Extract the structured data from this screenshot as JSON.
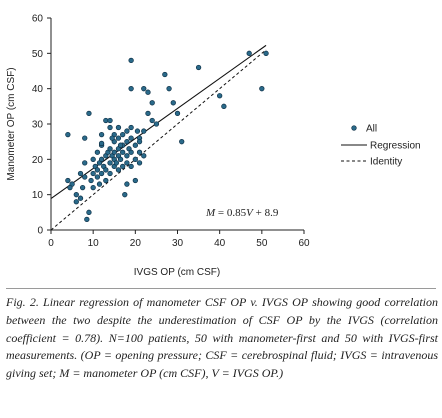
{
  "chart_data": {
    "type": "scatter",
    "xlabel": "IVGS OP (cm CSF)",
    "ylabel": "Manometer OP (cm CSF)",
    "xlim": [
      0,
      60
    ],
    "ylim": [
      0,
      60
    ],
    "x_ticks": [
      "0",
      "10",
      "20",
      "30",
      "40",
      "50",
      "60"
    ],
    "y_ticks": [
      "0",
      "10",
      "20",
      "30",
      "40",
      "50",
      "60"
    ],
    "grid": false,
    "legend_placement": "right",
    "legend": {
      "points": "All",
      "regression": "Regression",
      "identity": "Identity"
    },
    "annotation": {
      "lhs": "M",
      "eq": " = 0.85",
      "var": "V",
      "rest": " + 8.9"
    },
    "regression": {
      "slope": 0.85,
      "intercept": 8.9,
      "x_range": [
        0,
        51
      ]
    },
    "identity": {
      "x_range": [
        0,
        51
      ]
    },
    "points": [
      {
        "x": 4,
        "y": 27
      },
      {
        "x": 4,
        "y": 14
      },
      {
        "x": 5,
        "y": 13
      },
      {
        "x": 4.5,
        "y": 12
      },
      {
        "x": 6,
        "y": 10
      },
      {
        "x": 6,
        "y": 8
      },
      {
        "x": 7,
        "y": 9
      },
      {
        "x": 7.5,
        "y": 12
      },
      {
        "x": 7,
        "y": 16
      },
      {
        "x": 8,
        "y": 15
      },
      {
        "x": 8,
        "y": 19
      },
      {
        "x": 8.5,
        "y": 3
      },
      {
        "x": 9,
        "y": 5
      },
      {
        "x": 9,
        "y": 33
      },
      {
        "x": 9.5,
        "y": 14
      },
      {
        "x": 10,
        "y": 16
      },
      {
        "x": 10,
        "y": 20
      },
      {
        "x": 10,
        "y": 12
      },
      {
        "x": 10.5,
        "y": 18
      },
      {
        "x": 11,
        "y": 15
      },
      {
        "x": 11,
        "y": 17
      },
      {
        "x": 11,
        "y": 22
      },
      {
        "x": 11.5,
        "y": 19
      },
      {
        "x": 11.5,
        "y": 13
      },
      {
        "x": 12,
        "y": 16
      },
      {
        "x": 12,
        "y": 20
      },
      {
        "x": 12,
        "y": 24
      },
      {
        "x": 12,
        "y": 27
      },
      {
        "x": 12.5,
        "y": 18
      },
      {
        "x": 13,
        "y": 14
      },
      {
        "x": 13,
        "y": 17
      },
      {
        "x": 13,
        "y": 21
      },
      {
        "x": 13,
        "y": 31
      },
      {
        "x": 13.5,
        "y": 22
      },
      {
        "x": 14,
        "y": 16
      },
      {
        "x": 14,
        "y": 19
      },
      {
        "x": 14,
        "y": 23
      },
      {
        "x": 14,
        "y": 29
      },
      {
        "x": 14,
        "y": 31
      },
      {
        "x": 14.5,
        "y": 21
      },
      {
        "x": 15,
        "y": 18
      },
      {
        "x": 15,
        "y": 20
      },
      {
        "x": 15,
        "y": 22
      },
      {
        "x": 15,
        "y": 25
      },
      {
        "x": 15,
        "y": 27
      },
      {
        "x": 15.5,
        "y": 19
      },
      {
        "x": 16,
        "y": 17
      },
      {
        "x": 16,
        "y": 21
      },
      {
        "x": 16,
        "y": 23
      },
      {
        "x": 16,
        "y": 26
      },
      {
        "x": 16,
        "y": 29
      },
      {
        "x": 16.5,
        "y": 20
      },
      {
        "x": 17,
        "y": 18
      },
      {
        "x": 17,
        "y": 22
      },
      {
        "x": 17,
        "y": 24
      },
      {
        "x": 17,
        "y": 27
      },
      {
        "x": 17.5,
        "y": 10
      },
      {
        "x": 18,
        "y": 19
      },
      {
        "x": 18,
        "y": 21
      },
      {
        "x": 18,
        "y": 25
      },
      {
        "x": 18,
        "y": 28
      },
      {
        "x": 18,
        "y": 13
      },
      {
        "x": 18.5,
        "y": 23
      },
      {
        "x": 19,
        "y": 48
      },
      {
        "x": 19,
        "y": 40
      },
      {
        "x": 19,
        "y": 22
      },
      {
        "x": 19,
        "y": 26
      },
      {
        "x": 19,
        "y": 18
      },
      {
        "x": 19,
        "y": 29
      },
      {
        "x": 20,
        "y": 24
      },
      {
        "x": 20,
        "y": 20
      },
      {
        "x": 20,
        "y": 14
      },
      {
        "x": 20.5,
        "y": 28
      },
      {
        "x": 21,
        "y": 22
      },
      {
        "x": 21,
        "y": 26
      },
      {
        "x": 21,
        "y": 19
      },
      {
        "x": 21,
        "y": 25
      },
      {
        "x": 22,
        "y": 40
      },
      {
        "x": 22,
        "y": 28
      },
      {
        "x": 23,
        "y": 39
      },
      {
        "x": 23,
        "y": 33
      },
      {
        "x": 24,
        "y": 36
      },
      {
        "x": 24,
        "y": 31
      },
      {
        "x": 25,
        "y": 30
      },
      {
        "x": 27,
        "y": 44
      },
      {
        "x": 28,
        "y": 40
      },
      {
        "x": 29,
        "y": 36
      },
      {
        "x": 30,
        "y": 33
      },
      {
        "x": 31,
        "y": 25
      },
      {
        "x": 35,
        "y": 46
      },
      {
        "x": 40,
        "y": 38
      },
      {
        "x": 41,
        "y": 35
      },
      {
        "x": 47,
        "y": 50
      },
      {
        "x": 50,
        "y": 40
      },
      {
        "x": 51,
        "y": 50
      },
      {
        "x": 8,
        "y": 26
      },
      {
        "x": 22,
        "y": 21
      },
      {
        "x": 12,
        "y": 24.5
      },
      {
        "x": 16.5,
        "y": 24
      },
      {
        "x": 14.5,
        "y": 26
      }
    ]
  },
  "caption": {
    "text": "Fig. 2. Linear regression of manometer CSF OP v. IVGS OP showing good correlation between the two despite the underestimation of CSF OP by the IVGS (correlation coefficient = 0.78). N=100 patients, 50 with manometer-first and 50 with IVGS-first measurements. (OP = opening pressure; CSF = cerebrospinal fluid; IVGS = intravenous giving set; M = manometer OP (cm CSF), V = IVGS OP.)"
  }
}
